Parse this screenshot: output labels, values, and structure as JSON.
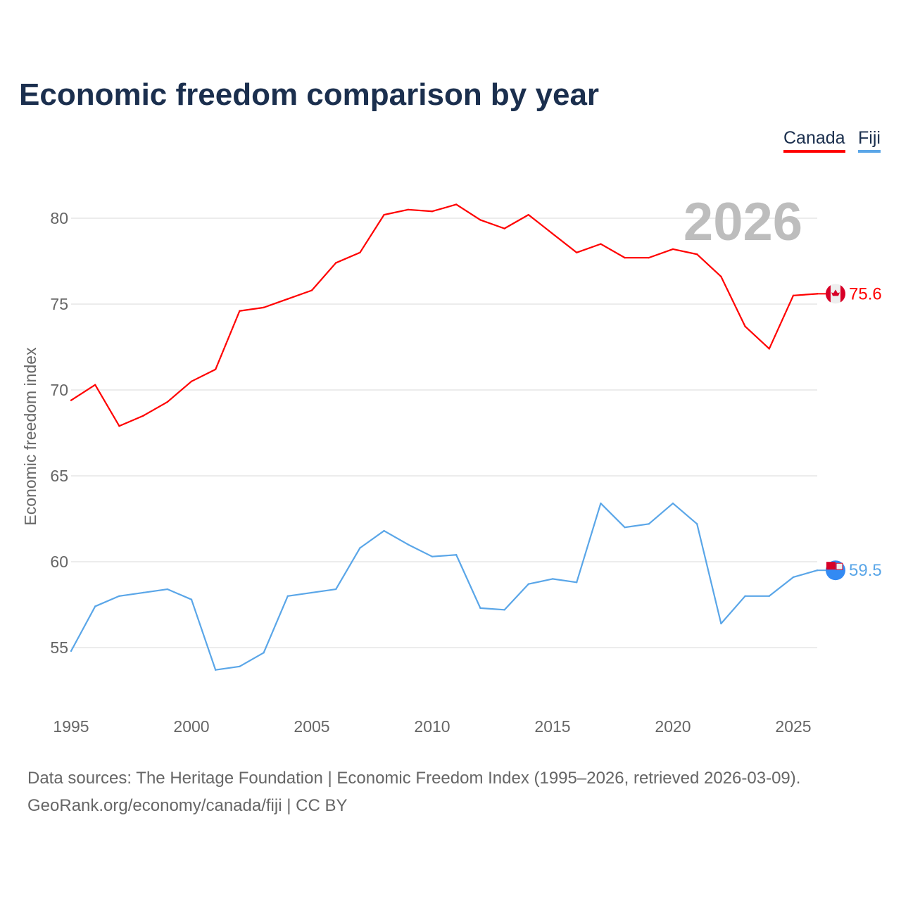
{
  "chart_data": {
    "type": "line",
    "title": "Economic freedom comparison by year",
    "ylabel": "Economic freedom index",
    "xlabel": "",
    "year_watermark": "2026",
    "ylim": [
      51,
      83
    ],
    "xlim": [
      1995,
      2026
    ],
    "yticks": [
      55,
      60,
      65,
      70,
      75,
      80
    ],
    "xticks": [
      1995,
      2000,
      2005,
      2010,
      2015,
      2020,
      2025
    ],
    "grid": true,
    "legend_position": "top-right",
    "x": [
      1995,
      1996,
      1997,
      1998,
      1999,
      2000,
      2001,
      2002,
      2003,
      2004,
      2005,
      2006,
      2007,
      2008,
      2009,
      2010,
      2011,
      2012,
      2013,
      2014,
      2015,
      2016,
      2017,
      2018,
      2019,
      2020,
      2021,
      2022,
      2023,
      2024,
      2025,
      2026
    ],
    "series": [
      {
        "name": "Canada",
        "color": "#ff0000",
        "end_label": "75.6",
        "values": [
          69.4,
          70.3,
          67.9,
          68.5,
          69.3,
          70.5,
          71.2,
          74.6,
          74.8,
          75.3,
          75.8,
          77.4,
          78.0,
          80.2,
          80.5,
          80.4,
          80.8,
          79.9,
          79.4,
          80.2,
          79.1,
          78.0,
          78.5,
          77.7,
          77.7,
          78.2,
          77.9,
          76.6,
          73.7,
          72.4,
          75.5,
          75.6
        ]
      },
      {
        "name": "Fiji",
        "color": "#5aa6e8",
        "end_label": "59.5",
        "values": [
          54.8,
          57.4,
          58.0,
          58.2,
          58.4,
          57.8,
          53.7,
          53.9,
          54.7,
          58.0,
          58.2,
          58.4,
          60.8,
          61.8,
          61.0,
          60.3,
          60.4,
          57.3,
          57.2,
          58.7,
          59.0,
          58.8,
          63.4,
          62.0,
          62.2,
          63.4,
          62.2,
          56.4,
          58.0,
          58.0,
          59.1,
          59.5
        ]
      }
    ]
  },
  "footer": {
    "line1": "Data sources: The Heritage Foundation | Economic Freedom Index (1995–2026, retrieved 2026-03-09).",
    "line2": "GeoRank.org/economy/canada/fiji | CC BY"
  }
}
